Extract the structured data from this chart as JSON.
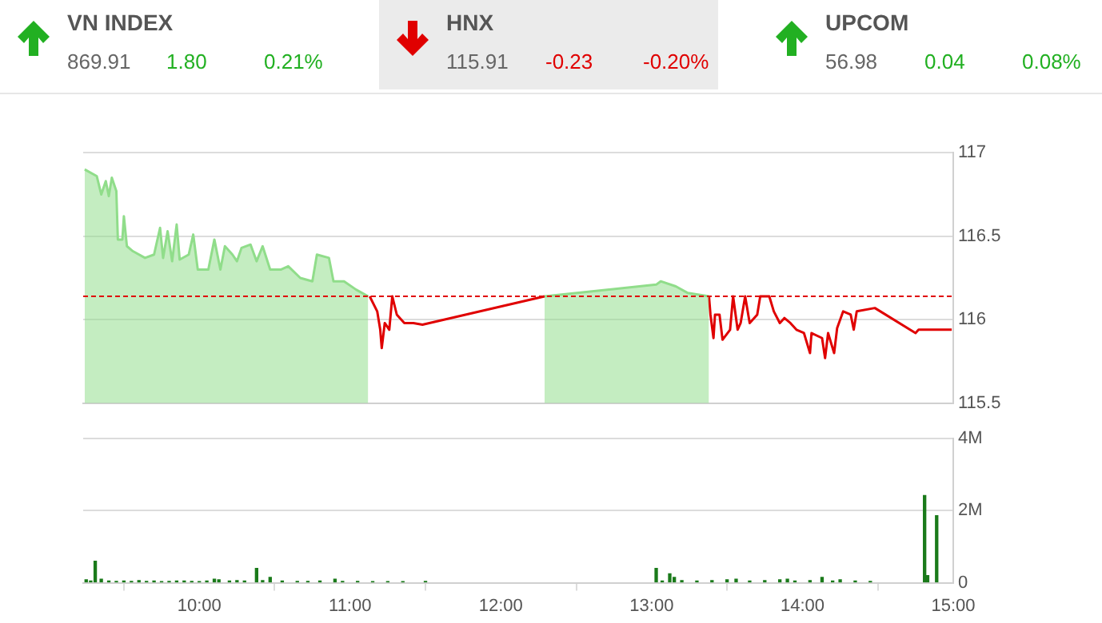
{
  "chart_data": [
    {
      "type": "other",
      "annotations": [
        "VN INDEX",
        "869.91",
        "1.80",
        "0.21%",
        "HNX",
        "115.91",
        "-0.23",
        "-0.20%",
        "UPCOM",
        "56.98",
        "0.04",
        "0.08%"
      ],
      "colors": [
        "#22b022",
        "#e00000",
        "#22b022"
      ]
    },
    {
      "type": "line",
      "xlim": [
        9.23,
        15
      ],
      "ylim": [
        115.5,
        117
      ],
      "yticks": [
        115.5,
        116,
        116.5,
        117
      ],
      "grid": "y",
      "tick_labels": "y",
      "ref_lines": [
        {
          "axis": "y",
          "value": 116.14,
          "color": "#e00000",
          "line_style": "dashed"
        }
      ],
      "series": [
        {
          "type": "area",
          "color": "#90dd8a",
          "x": [
            9.24,
            9.32,
            9.35,
            9.38,
            9.4,
            9.42,
            9.45,
            9.46,
            9.49,
            9.5,
            9.52,
            9.56,
            9.64,
            9.7,
            9.74,
            9.76,
            9.79,
            9.82,
            9.85,
            9.87,
            9.93,
            9.96,
            9.99,
            10.06,
            10.1,
            10.14,
            10.17,
            10.22,
            10.25,
            10.28,
            10.34,
            10.38,
            10.42,
            10.47,
            10.54,
            10.59,
            10.67,
            10.75,
            10.78,
            10.86,
            10.89,
            10.96,
            11.04,
            11.12,
            11.7,
            12.29,
            13.03,
            13.06,
            13.16,
            13.24,
            13.38
          ],
          "values": [
            116.9,
            116.86,
            116.75,
            116.83,
            116.74,
            116.85,
            116.77,
            116.48,
            116.48,
            116.62,
            116.44,
            116.41,
            116.37,
            116.39,
            116.55,
            116.37,
            116.53,
            116.35,
            116.57,
            116.36,
            116.39,
            116.51,
            116.3,
            116.3,
            116.48,
            116.3,
            116.44,
            116.39,
            116.35,
            116.43,
            116.45,
            116.35,
            116.44,
            116.3,
            116.3,
            116.32,
            116.25,
            116.23,
            116.39,
            116.37,
            116.23,
            116.23,
            116.18,
            116.14,
            null,
            116.14,
            116.21,
            116.23,
            116.2,
            116.16,
            116.14
          ]
        },
        {
          "type": "line",
          "color": "#e00000",
          "x": [
            11.13,
            11.18,
            11.2,
            11.21,
            11.23,
            11.26,
            11.28,
            11.31,
            11.36,
            11.42,
            11.48,
            12.29,
            12.8,
            13.38,
            13.39,
            13.41,
            13.42,
            13.45,
            13.47,
            13.52,
            13.54,
            13.57,
            13.59,
            13.62,
            13.65,
            13.7,
            13.72,
            13.78,
            13.81,
            13.85,
            13.88,
            13.92,
            13.96,
            14.01,
            14.05,
            14.06,
            14.13,
            14.15,
            14.17,
            14.21,
            14.23,
            14.27,
            14.32,
            14.34,
            14.36,
            14.48,
            14.75,
            14.77,
            14.99
          ],
          "values": [
            116.14,
            116.05,
            115.94,
            115.83,
            115.98,
            115.94,
            116.14,
            116.03,
            115.98,
            115.98,
            115.97,
            116.14,
            null,
            116.14,
            116.03,
            115.89,
            116.03,
            116.03,
            115.88,
            115.94,
            116.14,
            115.94,
            115.98,
            116.14,
            115.98,
            116.03,
            116.14,
            116.14,
            116.05,
            115.98,
            116.01,
            115.98,
            115.94,
            115.92,
            115.8,
            115.92,
            115.89,
            115.77,
            115.92,
            115.8,
            115.95,
            116.05,
            116.03,
            115.94,
            116.05,
            116.07,
            115.92,
            115.94,
            115.94
          ]
        }
      ]
    },
    {
      "type": "bar",
      "color": "#1a7a1a",
      "xlim": [
        9.23,
        15
      ],
      "xticks": [
        {
          "value": 10,
          "label": "10:00"
        },
        {
          "value": 11,
          "label": "11:00"
        },
        {
          "value": 12,
          "label": "12:00"
        },
        {
          "value": 13,
          "label": "13:00"
        },
        {
          "value": 14,
          "label": "14:00"
        },
        {
          "value": 15,
          "label": "15:00"
        }
      ],
      "ylim": [
        0,
        4
      ],
      "yticks": [
        {
          "value": 0,
          "label": "0"
        },
        {
          "value": 2,
          "label": "2M"
        },
        {
          "value": 4,
          "label": "4M"
        }
      ],
      "grid": "y",
      "x": [
        9.25,
        9.28,
        9.31,
        9.35,
        9.4,
        9.45,
        9.5,
        9.55,
        9.6,
        9.65,
        9.7,
        9.75,
        9.8,
        9.85,
        9.9,
        9.95,
        10.0,
        10.05,
        10.1,
        10.13,
        10.2,
        10.25,
        10.3,
        10.38,
        10.42,
        10.47,
        10.55,
        10.65,
        10.72,
        10.8,
        10.9,
        10.95,
        11.05,
        11.15,
        11.25,
        11.35,
        11.5,
        13.03,
        13.07,
        13.12,
        13.15,
        13.2,
        13.3,
        13.4,
        13.5,
        13.56,
        13.65,
        13.75,
        13.85,
        13.9,
        13.95,
        14.05,
        14.13,
        14.2,
        14.25,
        14.35,
        14.45,
        14.81,
        14.83,
        14.89
      ],
      "values": [
        0.08,
        0.05,
        0.6,
        0.1,
        0.05,
        0.04,
        0.05,
        0.04,
        0.06,
        0.04,
        0.05,
        0.03,
        0.04,
        0.05,
        0.05,
        0.04,
        0.03,
        0.05,
        0.1,
        0.08,
        0.05,
        0.06,
        0.05,
        0.4,
        0.06,
        0.15,
        0.05,
        0.04,
        0.04,
        0.05,
        0.1,
        0.04,
        0.04,
        0.03,
        0.03,
        0.03,
        0.04,
        0.4,
        0.05,
        0.25,
        0.15,
        0.06,
        0.05,
        0.06,
        0.08,
        0.1,
        0.05,
        0.06,
        0.08,
        0.1,
        0.05,
        0.06,
        0.15,
        0.05,
        0.08,
        0.05,
        0.04,
        2.42,
        0.2,
        1.86
      ]
    }
  ]
}
